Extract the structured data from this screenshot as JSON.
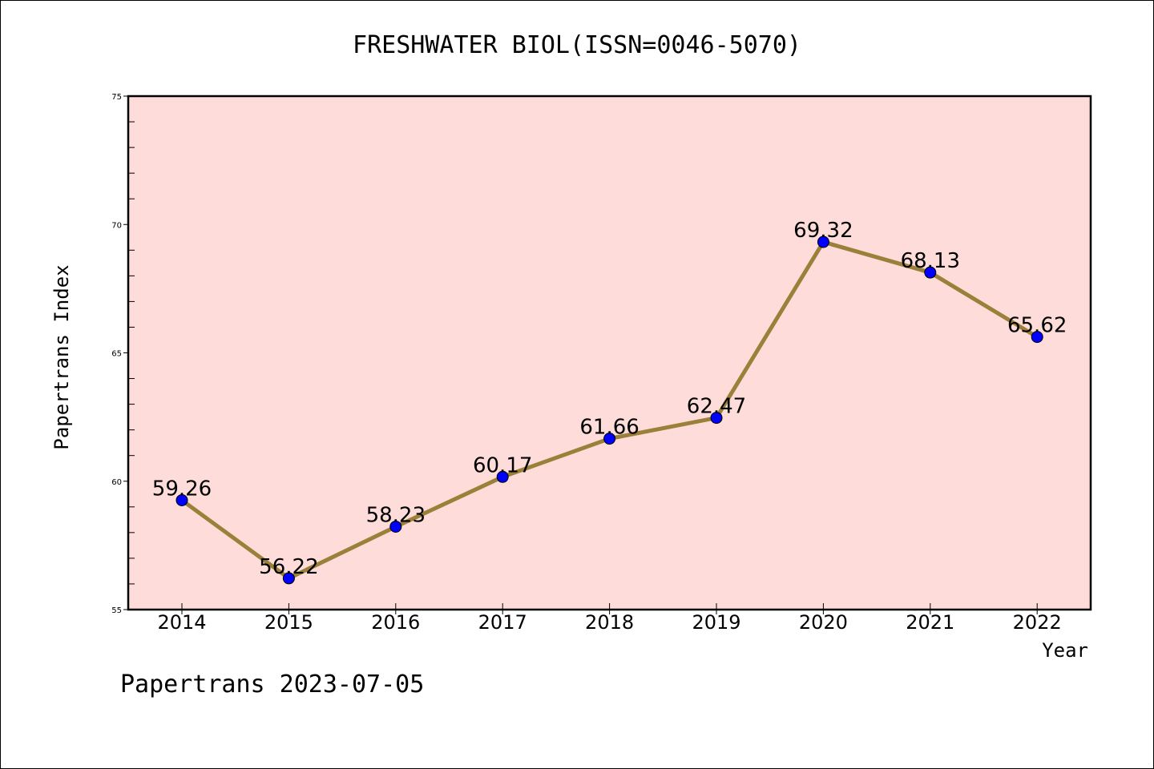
{
  "chart_data": {
    "type": "line",
    "title": "FRESHWATER BIOL(ISSN=0046-5070)",
    "xlabel": "Year",
    "ylabel": "Papertrans Index",
    "categories": [
      "2014",
      "2015",
      "2016",
      "2017",
      "2018",
      "2019",
      "2020",
      "2021",
      "2022"
    ],
    "series": [
      {
        "values": [
          59.26,
          56.22,
          58.23,
          60.17,
          61.66,
          62.47,
          69.32,
          68.13,
          65.62
        ]
      }
    ],
    "data_labels": [
      "59.26",
      "56.22",
      "58.23",
      "60.17",
      "61.66",
      "62.47",
      "69.32",
      "68.13",
      "65.62"
    ],
    "ylim": [
      55,
      75
    ],
    "yticks": [
      "55",
      "60",
      "65",
      "70",
      "75"
    ],
    "grid": false,
    "legend": "none",
    "colors": {
      "plot_background": "#fddcda",
      "line": "#9a8038",
      "marker": "#0000ff"
    }
  },
  "footer": "Papertrans 2023-07-05"
}
